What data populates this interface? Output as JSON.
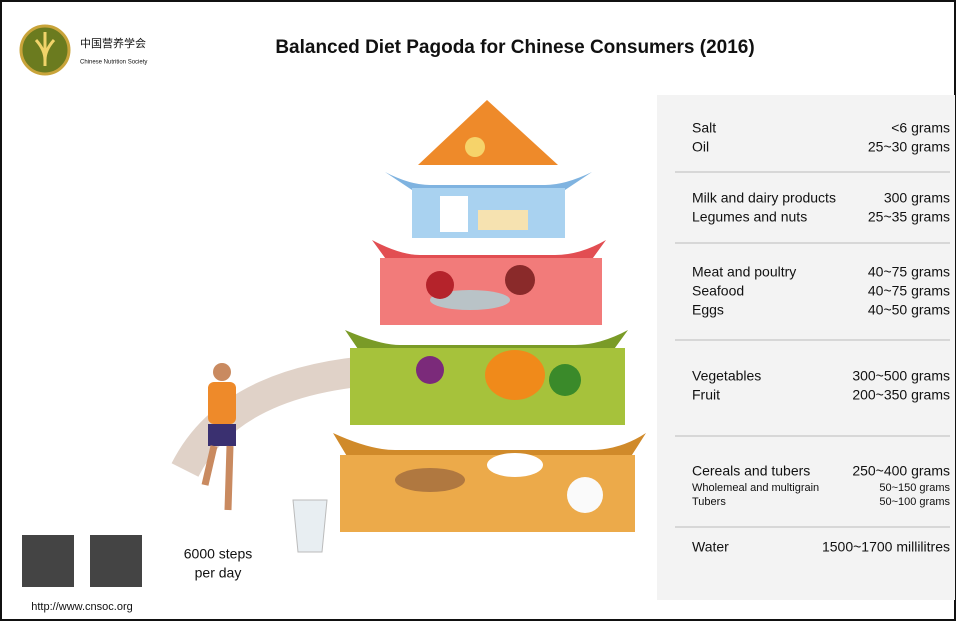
{
  "header": {
    "org_cn": "中国营养学会",
    "org_en": "Chinese Nutrition Society",
    "title": "Balanced Diet Pagoda for Chinese Consumers (2016)"
  },
  "tiers": [
    {
      "items": [
        {
          "name": "Salt",
          "amount": "<6 grams"
        },
        {
          "name": "Oil",
          "amount": "25~30 grams"
        }
      ]
    },
    {
      "items": [
        {
          "name": "Milk and dairy products",
          "amount": "300 grams"
        },
        {
          "name": "Legumes and nuts",
          "amount": "25~35 grams"
        }
      ]
    },
    {
      "items": [
        {
          "name": "Meat and poultry",
          "amount": "40~75 grams"
        },
        {
          "name": "Seafood",
          "amount": "40~75 grams"
        },
        {
          "name": "Eggs",
          "amount": "40~50 grams"
        }
      ]
    },
    {
      "items": [
        {
          "name": "Vegetables",
          "amount": "300~500 grams"
        },
        {
          "name": "Fruit",
          "amount": "200~350 grams"
        }
      ]
    },
    {
      "items": [
        {
          "name": "Cereals and tubers",
          "amount": "250~400 grams"
        }
      ],
      "subitems": [
        {
          "name": "Wholemeal and multigrain",
          "amount": "50~150 grams"
        },
        {
          "name": "Tubers",
          "amount": "50~100 grams"
        }
      ]
    },
    {
      "items": [
        {
          "name": "Water",
          "amount": "1500~1700 millilitres"
        }
      ]
    }
  ],
  "activity": [
    "6000 steps",
    "per day"
  ],
  "website": "http://www.cnsoc.org"
}
